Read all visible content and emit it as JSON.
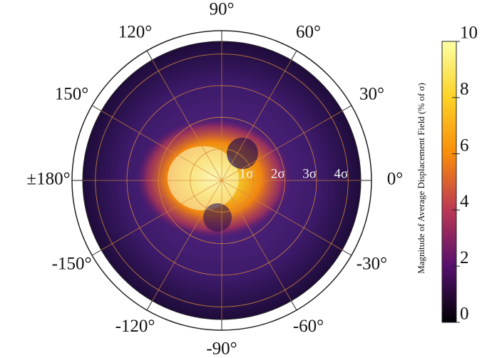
{
  "chart_data": {
    "type": "polar_heatmap",
    "colorbar_label": "Magnitude of Average Displacement Field (% of σ)",
    "colormap": "inferno",
    "clim": [
      0,
      10
    ],
    "cticks": [
      0,
      2,
      4,
      6,
      8,
      10
    ],
    "rlim": [
      0,
      4.4
    ],
    "rticks": [
      {
        "value": 1,
        "label": "1σ"
      },
      {
        "value": 2,
        "label": "2σ"
      },
      {
        "value": 3,
        "label": "3σ"
      },
      {
        "value": 4,
        "label": "4σ"
      }
    ],
    "angle_ticks": [
      {
        "value": 90,
        "label": "90°"
      },
      {
        "value": 60,
        "label": "60°"
      },
      {
        "value": 30,
        "label": "30°"
      },
      {
        "value": 0,
        "label": "0°"
      },
      {
        "value": -30,
        "label": "-30°"
      },
      {
        "value": -60,
        "label": "-60°"
      },
      {
        "value": -90,
        "label": "-90°"
      },
      {
        "value": -120,
        "label": "-120°"
      },
      {
        "value": -150,
        "label": "-150°"
      },
      {
        "value": 180,
        "label": "±180°"
      },
      {
        "value": 150,
        "label": "150°"
      },
      {
        "value": 120,
        "label": "120°"
      }
    ],
    "grid": true
  }
}
